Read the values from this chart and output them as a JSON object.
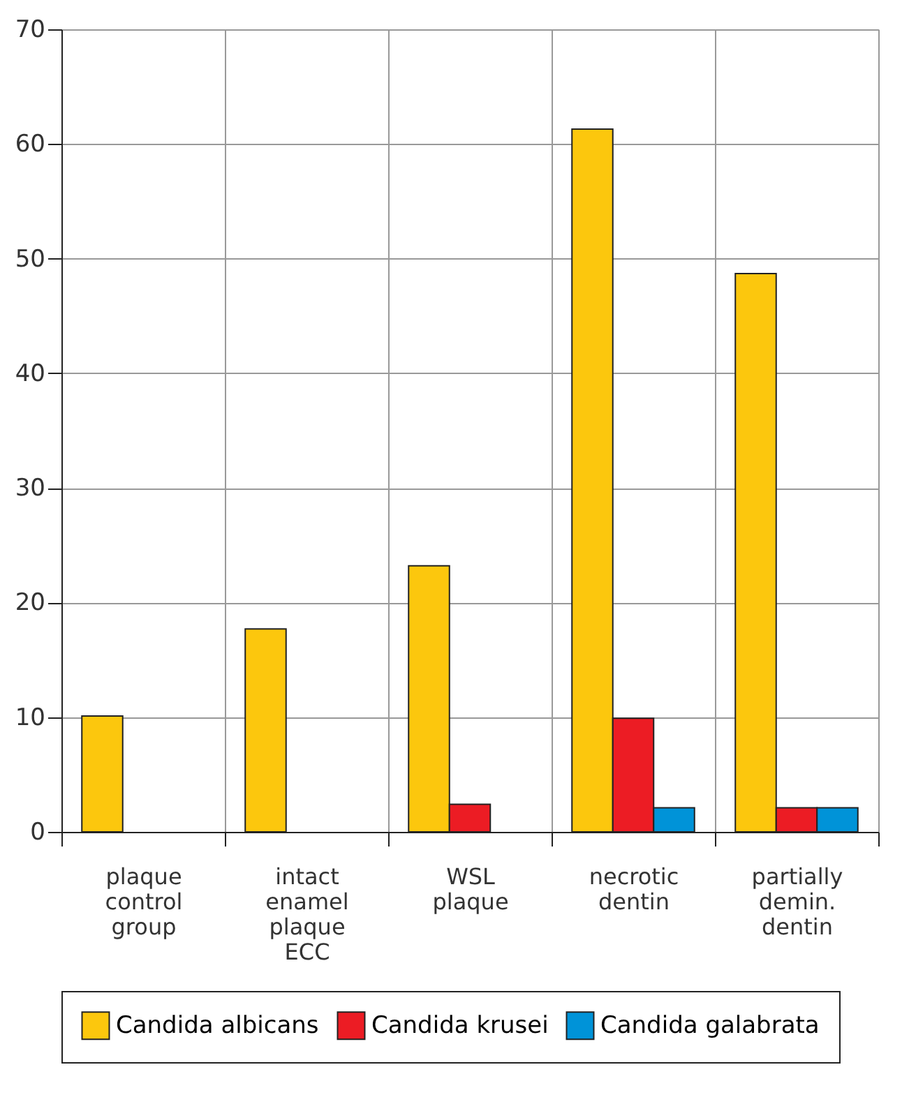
{
  "chart_data": {
    "type": "bar",
    "categories": [
      "plaque control group",
      "intact enamel plaque ECC",
      "WSL plaque",
      "necrotic dentin",
      "partially demin. dentin"
    ],
    "series": [
      {
        "name": "Candida albicans",
        "color": "#fcc70d",
        "values": [
          10.1,
          17.7,
          23.2,
          61.3,
          48.7
        ]
      },
      {
        "name": "Candida krusei",
        "color": "#ec1c24",
        "values": [
          null,
          null,
          2.4,
          9.9,
          2.1
        ]
      },
      {
        "name": "Candida galabrata",
        "color": "#0093d8",
        "values": [
          null,
          null,
          null,
          2.1,
          2.1
        ]
      }
    ],
    "ylim": [
      0,
      70
    ],
    "yticks": [
      0,
      10,
      20,
      30,
      40,
      50,
      60,
      70
    ],
    "grid": true,
    "legend": "bottom"
  }
}
